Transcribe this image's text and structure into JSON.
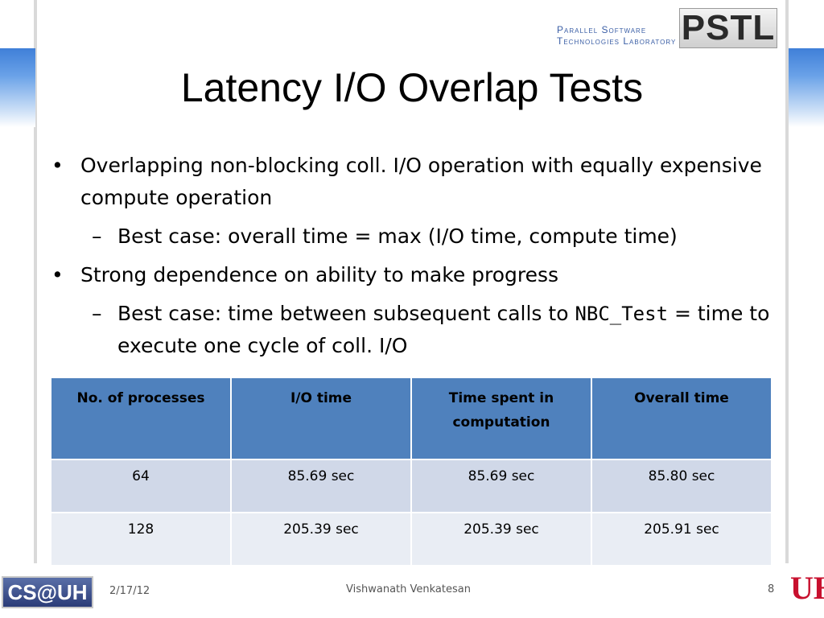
{
  "header": {
    "lab_line1": "Parallel Software",
    "lab_line2": "Technologies Laboratory",
    "lab_logo_text": "PSTL"
  },
  "slide": {
    "title": "Latency I/O Overlap Tests",
    "bullets": [
      {
        "text": "Overlapping non-blocking coll. I/O operation with equally expensive compute operation"
      },
      {
        "text": "Best case: overall time = max (I/O time, compute time)"
      },
      {
        "text": "Strong dependence on ability to make progress"
      },
      {
        "text_before": "Best case: time between subsequent calls to ",
        "code": "NBC_Test",
        "text_after": " = time to execute one cycle of coll. I/O"
      }
    ],
    "table": {
      "headers": [
        "No. of processes",
        "I/O time",
        "Time spent in computation",
        "Overall time"
      ],
      "rows": [
        [
          "64",
          "85.69 sec",
          "85.69 sec",
          "85.80 sec"
        ],
        [
          "128",
          "205.39 sec",
          "205.39 sec",
          "205.91 sec"
        ]
      ]
    }
  },
  "footer": {
    "date": "2/17/12",
    "author": "Vishwanath Venkatesan",
    "page": "8",
    "left_logo_text": "CS@UH",
    "right_logo_text": "UH"
  },
  "colors": {
    "header_blue": "#4f81bd",
    "row1": "#d0d8e8",
    "row2": "#e9edf4",
    "uh_red": "#c8102e"
  }
}
